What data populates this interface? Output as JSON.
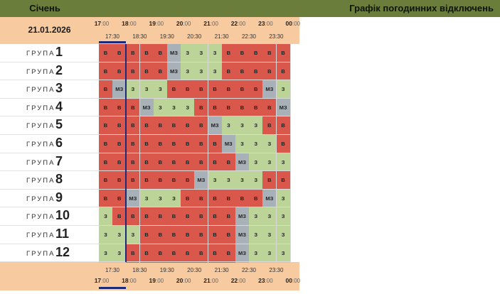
{
  "header": {
    "month": "Січень",
    "title": "Графік погодинних відключень"
  },
  "date": "21.01.2026",
  "hours": [
    "17",
    "18",
    "19",
    "20",
    "21",
    "22",
    "23",
    "00"
  ],
  "hour_suffix": ":00",
  "halves": [
    "17:30",
    "18:30",
    "19:30",
    "20:30",
    "21:30",
    "22:30",
    "23:30"
  ],
  "group_label": "ГРУПА",
  "groups": [
    {
      "num": "1",
      "cells": [
        "В",
        "В",
        "В",
        "В",
        "В",
        "МЗ",
        "З",
        "З",
        "З",
        "В",
        "В",
        "В",
        "В",
        "В"
      ]
    },
    {
      "num": "2",
      "cells": [
        "В",
        "В",
        "В",
        "В",
        "В",
        "МЗ",
        "З",
        "З",
        "З",
        "В",
        "В",
        "В",
        "В",
        "В"
      ]
    },
    {
      "num": "3",
      "cells": [
        "В",
        "МЗ",
        "З",
        "З",
        "З",
        "В",
        "В",
        "В",
        "В",
        "В",
        "В",
        "В",
        "МЗ",
        "З"
      ]
    },
    {
      "num": "4",
      "cells": [
        "В",
        "В",
        "В",
        "МЗ",
        "З",
        "З",
        "З",
        "В",
        "В",
        "В",
        "В",
        "В",
        "В",
        "МЗ"
      ]
    },
    {
      "num": "5",
      "cells": [
        "В",
        "В",
        "В",
        "В",
        "В",
        "В",
        "В",
        "В",
        "МЗ",
        "З",
        "З",
        "З",
        "В",
        "В"
      ]
    },
    {
      "num": "6",
      "cells": [
        "В",
        "В",
        "В",
        "В",
        "В",
        "В",
        "В",
        "В",
        "В",
        "МЗ",
        "З",
        "З",
        "З",
        "В"
      ]
    },
    {
      "num": "7",
      "cells": [
        "В",
        "В",
        "В",
        "В",
        "В",
        "В",
        "В",
        "В",
        "В",
        "В",
        "МЗ",
        "З",
        "З",
        "З"
      ]
    },
    {
      "num": "8",
      "cells": [
        "В",
        "В",
        "В",
        "В",
        "В",
        "В",
        "В",
        "МЗ",
        "З",
        "З",
        "З",
        "З",
        "В",
        "В"
      ]
    },
    {
      "num": "9",
      "cells": [
        "В",
        "В",
        "МЗ",
        "З",
        "З",
        "З",
        "В",
        "В",
        "В",
        "В",
        "В",
        "В",
        "МЗ",
        "З"
      ]
    },
    {
      "num": "10",
      "cells": [
        "З",
        "В",
        "В",
        "В",
        "В",
        "В",
        "В",
        "В",
        "В",
        "В",
        "МЗ",
        "З",
        "З",
        "З"
      ]
    },
    {
      "num": "11",
      "cells": [
        "З",
        "З",
        "З",
        "В",
        "В",
        "В",
        "В",
        "В",
        "В",
        "В",
        "МЗ",
        "З",
        "З",
        "З"
      ]
    },
    {
      "num": "12",
      "cells": [
        "З",
        "З",
        "В",
        "В",
        "В",
        "В",
        "В",
        "В",
        "В",
        "В",
        "МЗ",
        "З",
        "З",
        "З"
      ]
    }
  ],
  "legend_colors": {
    "В": "#d9584b",
    "З": "#bdd499",
    "МЗ": "#a9b1b8"
  }
}
